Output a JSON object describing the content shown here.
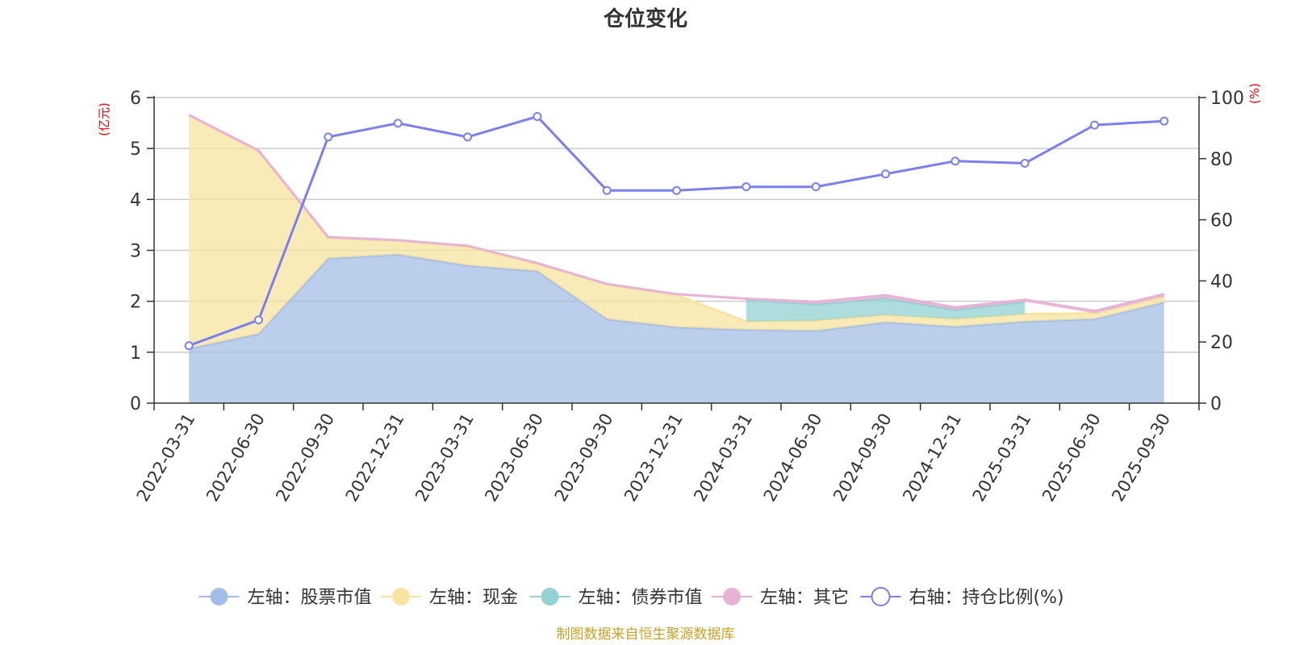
{
  "chart_data": {
    "type": "area",
    "title": "仓位变化",
    "source": "制图数据来自恒生聚源数据库",
    "left_axis": {
      "unit": "(亿元)",
      "ylim": [
        0,
        6
      ],
      "ticks": [
        0,
        1,
        2,
        3,
        4,
        5,
        6
      ]
    },
    "right_axis": {
      "unit": "(%)",
      "ylim": [
        0,
        100
      ],
      "ticks": [
        0,
        20,
        40,
        60,
        80,
        100
      ]
    },
    "categories": [
      "2022-03-31",
      "2022-06-30",
      "2022-09-30",
      "2022-12-31",
      "2023-03-31",
      "2023-06-30",
      "2023-09-30",
      "2023-12-31",
      "2024-03-31",
      "2024-06-30",
      "2024-09-30",
      "2024-12-31",
      "2025-03-31",
      "2025-06-30",
      "2025-09-30"
    ],
    "series": [
      {
        "name": "左轴：股票市值",
        "axis": "left",
        "kind": "area",
        "color": "#a4bde6",
        "values": [
          1.07,
          1.36,
          2.84,
          2.92,
          2.7,
          2.59,
          1.65,
          1.49,
          1.44,
          1.42,
          1.59,
          1.5,
          1.6,
          1.65,
          1.98
        ]
      },
      {
        "name": "左轴：现金",
        "axis": "left",
        "kind": "area",
        "color": "#f7e4a0",
        "values": [
          4.57,
          3.58,
          0.4,
          0.26,
          0.37,
          0.14,
          0.68,
          0.63,
          0.16,
          0.2,
          0.14,
          0.15,
          0.15,
          0.11,
          0.11
        ]
      },
      {
        "name": "左轴：债券市值",
        "axis": "left",
        "kind": "area",
        "color": "#93d1d3",
        "values": [
          0,
          0,
          0,
          0,
          0,
          0,
          0,
          0,
          0.43,
          0.32,
          0.33,
          0.18,
          0.24,
          0,
          0
        ]
      },
      {
        "name": "左轴：其它",
        "axis": "left",
        "kind": "area",
        "color": "#e6b3d6",
        "values": [
          0.02,
          0.02,
          0.02,
          0.02,
          0.02,
          0.02,
          0.01,
          0.02,
          0.02,
          0.05,
          0.06,
          0.05,
          0.04,
          0.05,
          0.05
        ]
      },
      {
        "name": "右轴：持仓比例(%)",
        "axis": "right",
        "kind": "line",
        "color": "#7b7ff0",
        "values": [
          18.8,
          27.2,
          87.1,
          91.6,
          87.1,
          93.8,
          69.6,
          69.6,
          70.8,
          70.8,
          75.0,
          79.2,
          78.5,
          91.0,
          92.3
        ]
      }
    ]
  }
}
